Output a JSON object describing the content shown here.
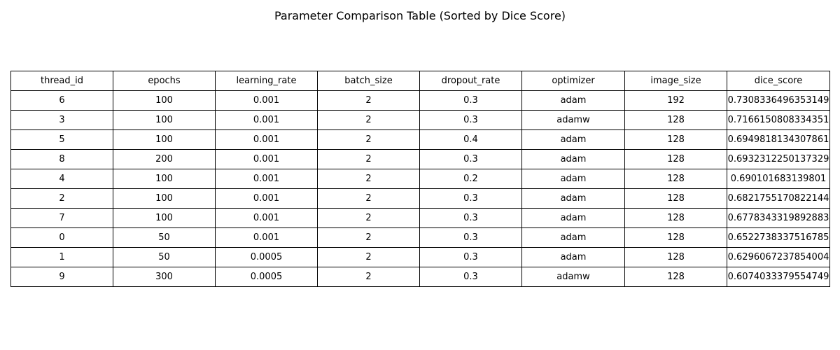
{
  "chart_data": {
    "type": "table",
    "title": "Parameter Comparison Table (Sorted by Dice Score)",
    "columns": [
      "thread_id",
      "epochs",
      "learning_rate",
      "batch_size",
      "dropout_rate",
      "optimizer",
      "image_size",
      "dice_score"
    ],
    "rows": [
      [
        "6",
        "100",
        "0.001",
        "2",
        "0.3",
        "adam",
        "192",
        "0.7308336496353149"
      ],
      [
        "3",
        "100",
        "0.001",
        "2",
        "0.3",
        "adamw",
        "128",
        "0.7166150808334351"
      ],
      [
        "5",
        "100",
        "0.001",
        "2",
        "0.4",
        "adam",
        "128",
        "0.6949818134307861"
      ],
      [
        "8",
        "200",
        "0.001",
        "2",
        "0.3",
        "adam",
        "128",
        "0.6932312250137329"
      ],
      [
        "4",
        "100",
        "0.001",
        "2",
        "0.2",
        "adam",
        "128",
        "0.690101683139801"
      ],
      [
        "2",
        "100",
        "0.001",
        "2",
        "0.3",
        "adam",
        "128",
        "0.6821755170822144"
      ],
      [
        "7",
        "100",
        "0.001",
        "2",
        "0.3",
        "adam",
        "128",
        "0.6778343319892883"
      ],
      [
        "0",
        "50",
        "0.001",
        "2",
        "0.3",
        "adam",
        "128",
        "0.6522738337516785"
      ],
      [
        "1",
        "50",
        "0.0005",
        "2",
        "0.3",
        "adam",
        "128",
        "0.6296067237854004"
      ],
      [
        "9",
        "300",
        "0.0005",
        "2",
        "0.3",
        "adamw",
        "128",
        "0.6074033379554749"
      ]
    ],
    "grid": true
  }
}
